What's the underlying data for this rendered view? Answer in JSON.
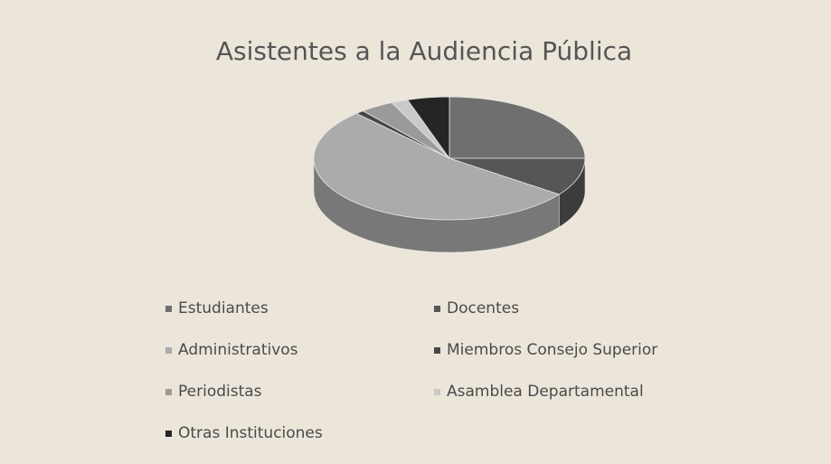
{
  "chart_data": {
    "type": "pie",
    "title": "Asistentes  a la Audiencia Pública",
    "categories": [
      "Estudiantes",
      "Docentes",
      "Administrativos",
      "Miembros Consejo Superior",
      "Periodistas",
      "Asamblea Departamental",
      "Otras Instituciones"
    ],
    "values": [
      25,
      10,
      53,
      1,
      4,
      2,
      5
    ],
    "colors": [
      "#6f6f6f",
      "#565656",
      "#ababab",
      "#474747",
      "#9a9a9a",
      "#c9c9c9",
      "#252525"
    ],
    "legend": "bottom"
  }
}
